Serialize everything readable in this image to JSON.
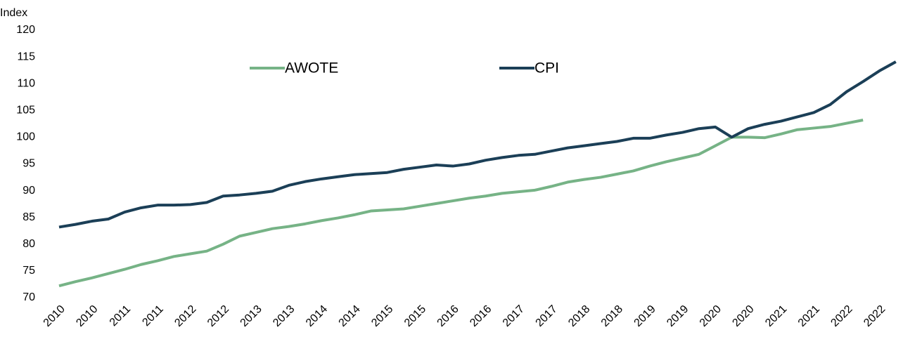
{
  "chart_data": {
    "type": "line",
    "y_label": "Index",
    "categories": [
      "2010",
      null,
      "2010",
      null,
      "2011",
      null,
      "2011",
      null,
      "2012",
      null,
      "2012",
      null,
      "2013",
      null,
      "2013",
      null,
      "2014",
      null,
      "2014",
      null,
      "2015",
      null,
      "2015",
      null,
      "2016",
      null,
      "2016",
      null,
      "2017",
      null,
      "2017",
      null,
      "2018",
      null,
      "2018",
      null,
      "2019",
      null,
      "2019",
      null,
      "2020",
      null,
      "2020",
      null,
      "2021",
      null,
      "2021",
      null,
      "2022",
      null,
      "2022",
      null
    ],
    "series": [
      {
        "name": "AWOTE",
        "color": "#76b386",
        "values": [
          72.2,
          73.0,
          73.7,
          74.5,
          75.3,
          76.2,
          76.9,
          77.7,
          78.2,
          78.7,
          80.0,
          81.5,
          82.2,
          82.9,
          83.3,
          83.8,
          84.4,
          84.9,
          85.5,
          86.2,
          86.4,
          86.6,
          87.1,
          87.6,
          88.1,
          88.6,
          89.0,
          89.5,
          89.8,
          90.1,
          90.8,
          91.6,
          92.1,
          92.5,
          93.1,
          93.7,
          94.6,
          95.4,
          96.1,
          96.8,
          98.4,
          100.0,
          100.0,
          99.9,
          100.6,
          101.4,
          101.7,
          102.0,
          102.6,
          103.2,
          null,
          null
        ]
      },
      {
        "name": "CPI",
        "color": "#1b3f57",
        "values": [
          83.2,
          83.7,
          84.3,
          84.7,
          86.0,
          86.8,
          87.3,
          87.3,
          87.4,
          87.8,
          89.0,
          89.2,
          89.5,
          89.9,
          91.0,
          91.7,
          92.2,
          92.6,
          93.0,
          93.2,
          93.4,
          94.0,
          94.4,
          94.8,
          94.6,
          95.0,
          95.7,
          96.2,
          96.6,
          96.8,
          97.4,
          98.0,
          98.4,
          98.8,
          99.2,
          99.8,
          99.8,
          100.4,
          100.9,
          101.6,
          101.9,
          100.0,
          101.6,
          102.4,
          103.0,
          103.8,
          104.6,
          106.1,
          108.5,
          110.4,
          112.4,
          114.1
        ]
      }
    ],
    "ylim": [
      70,
      120
    ],
    "yticks": [
      70,
      75,
      80,
      85,
      90,
      95,
      100,
      105,
      110,
      115,
      120
    ],
    "grid": false
  }
}
